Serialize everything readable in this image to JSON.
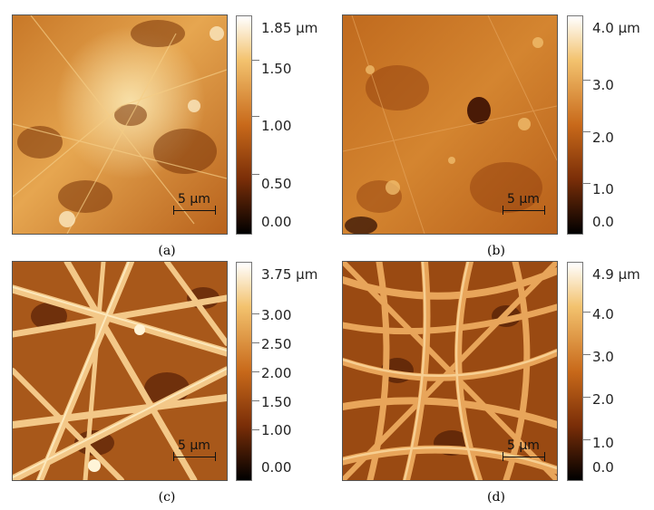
{
  "panels": [
    {
      "caption": "(a)",
      "scale_bar": "5 μm",
      "colorbar": {
        "unit_label": "1.85 μm",
        "ticks": [
          "1.50",
          "1.00",
          "0.50",
          "0.00"
        ]
      }
    },
    {
      "caption": "(b)",
      "scale_bar": "5 μm",
      "colorbar": {
        "unit_label": "4.0 μm",
        "ticks": [
          "3.0",
          "2.0",
          "1.0",
          "0.0"
        ]
      }
    },
    {
      "caption": "(c)",
      "scale_bar": "5 μm",
      "colorbar": {
        "unit_label": "3.75 μm",
        "ticks": [
          "3.00",
          "2.50",
          "2.00",
          "1.50",
          "1.00",
          "0.00"
        ]
      }
    },
    {
      "caption": "(d)",
      "scale_bar": "5 μm",
      "colorbar": {
        "unit_label": "4.9 μm",
        "ticks": [
          "4.0",
          "3.0",
          "2.0",
          "1.0",
          "0.0"
        ]
      }
    }
  ],
  "colormap": {
    "low": "#000000",
    "mid_dark": "#7a2e08",
    "mid": "#c8691a",
    "high": "#f3c36f",
    "top": "#ffffff"
  }
}
